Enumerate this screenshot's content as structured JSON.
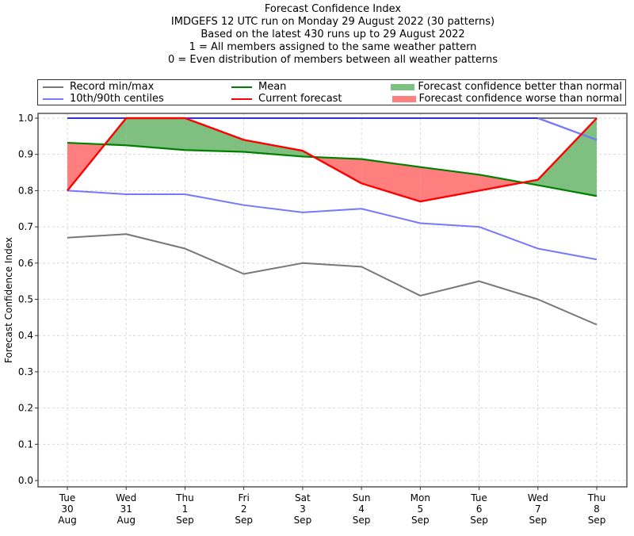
{
  "chart_data": {
    "type": "line",
    "title_lines": [
      "Forecast Confidence Index",
      "IMDGEFS 12 UTC run on Monday 29 August 2022 (30 patterns)",
      "Based on the latest 430 runs up to 29 August 2022",
      "1 = All members assigned to the same weather pattern",
      "0 = Even distribution of members between all weather patterns"
    ],
    "xlabel": "",
    "ylabel": "Forecast Confidence Index",
    "ylim": [
      0,
      1.0
    ],
    "yticks": [
      "0.0",
      "0.1",
      "0.2",
      "0.3",
      "0.4",
      "0.5",
      "0.6",
      "0.7",
      "0.8",
      "0.9",
      "1.0"
    ],
    "grid": true,
    "legend_position": "top",
    "categories": [
      [
        "Tue",
        "30",
        "Aug"
      ],
      [
        "Wed",
        "31",
        "Aug"
      ],
      [
        "Thu",
        "1",
        "Sep"
      ],
      [
        "Fri",
        "2",
        "Sep"
      ],
      [
        "Sat",
        "3",
        "Sep"
      ],
      [
        "Sun",
        "4",
        "Sep"
      ],
      [
        "Mon",
        "5",
        "Sep"
      ],
      [
        "Tue",
        "6",
        "Sep"
      ],
      [
        "Wed",
        "7",
        "Sep"
      ],
      [
        "Thu",
        "8",
        "Sep"
      ]
    ],
    "series": [
      {
        "name": "Record max",
        "legend": "Record min/max",
        "color": "#777777",
        "values": [
          1.0,
          1.0,
          1.0,
          1.0,
          1.0,
          1.0,
          1.0,
          1.0,
          1.0,
          1.0
        ]
      },
      {
        "name": "Record min",
        "legend": "Record min/max",
        "color": "#777777",
        "values": [
          0.67,
          0.68,
          0.64,
          0.57,
          0.6,
          0.59,
          0.51,
          0.55,
          0.5,
          0.43
        ]
      },
      {
        "name": "90th centile",
        "legend": "10th/90th centiles",
        "color": "#7777ff",
        "values": [
          1.0,
          1.0,
          1.0,
          1.0,
          1.0,
          1.0,
          1.0,
          1.0,
          1.0,
          0.94
        ]
      },
      {
        "name": "10th centile",
        "legend": "10th/90th centiles",
        "color": "#7777ff",
        "values": [
          0.8,
          0.79,
          0.79,
          0.76,
          0.74,
          0.75,
          0.71,
          0.7,
          0.64,
          0.61
        ]
      },
      {
        "name": "Mean",
        "legend": "Mean",
        "color": "#008000",
        "values": [
          0.932,
          0.925,
          0.912,
          0.907,
          0.894,
          0.887,
          0.865,
          0.844,
          0.815,
          0.785
        ]
      },
      {
        "name": "Current forecast",
        "legend": "Current forecast",
        "color": "#ff0000",
        "values": [
          0.8,
          1.0,
          1.0,
          0.94,
          0.91,
          0.82,
          0.77,
          0.8,
          0.83,
          1.0
        ]
      }
    ],
    "fills": {
      "better": {
        "label": "Forecast confidence better than normal",
        "color": "#7fbf7f"
      },
      "worse": {
        "label": "Forecast confidence worse than normal",
        "color": "#ff7f7f"
      }
    }
  },
  "legend": {
    "record": "Record min/max",
    "centiles": "10th/90th centiles",
    "mean": "Mean",
    "current": "Current forecast",
    "better": "Forecast confidence better than normal",
    "worse": "Forecast confidence worse than normal"
  }
}
